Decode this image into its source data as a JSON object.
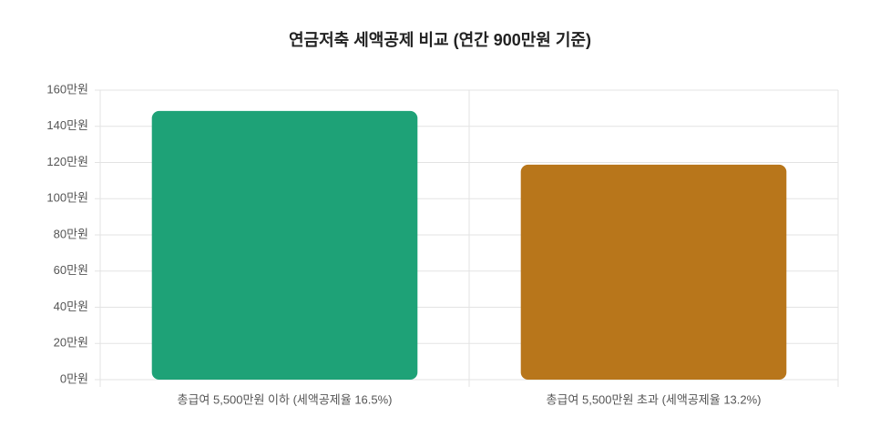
{
  "chart_data": {
    "type": "bar",
    "title": "연금저축 세액공제 비교 (연간 900만원 기준)",
    "categories": [
      "총급여 5,500만원 이하 (세액공제율 16.5%)",
      "총급여 5,500만원 초과 (세액공제율 13.2%)"
    ],
    "values": [
      148.5,
      118.8
    ],
    "colors": [
      "#1ea277",
      "#b8761b"
    ],
    "ylim": [
      0,
      160
    ],
    "yticks": [
      {
        "value": 0,
        "label": "0만원"
      },
      {
        "value": 20,
        "label": "20만원"
      },
      {
        "value": 40,
        "label": "40만원"
      },
      {
        "value": 60,
        "label": "60만원"
      },
      {
        "value": 80,
        "label": "80만원"
      },
      {
        "value": 100,
        "label": "100만원"
      },
      {
        "value": 120,
        "label": "120만원"
      },
      {
        "value": 140,
        "label": "140만원"
      },
      {
        "value": 160,
        "label": "160만원"
      }
    ],
    "grid": true
  }
}
